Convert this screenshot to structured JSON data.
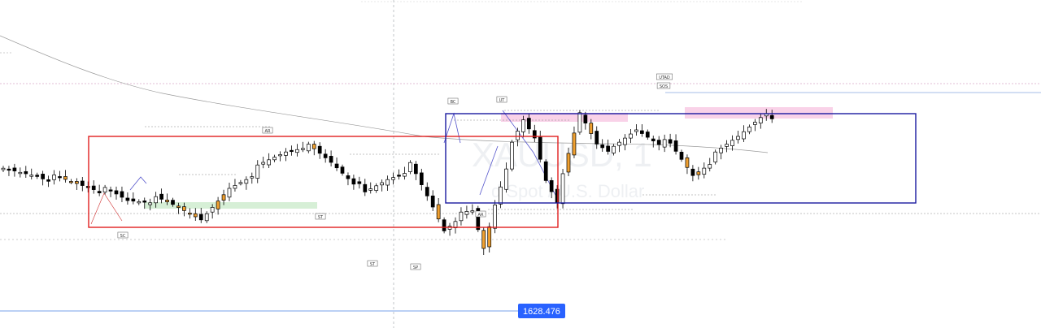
{
  "chart_data": {
    "type": "candlestick",
    "title": "",
    "watermark": {
      "ticker": "XAUUSD, 1",
      "name": "d Spot / U.S. Dollar"
    },
    "price_label": "1628.476",
    "labels": [
      {
        "text": "SC",
        "i": 23
      },
      {
        "text": "AR",
        "i": 53
      },
      {
        "text": "ST",
        "i": 64
      },
      {
        "text": "ST",
        "i": 76
      },
      {
        "text": "SP",
        "i": 85
      },
      {
        "text": "BC",
        "i": 92
      },
      {
        "text": "AR",
        "i": 97
      },
      {
        "text": "UT",
        "i": 102
      },
      {
        "text": "SOS",
        "i": 134
      },
      {
        "text": "UTAD",
        "i": 134
      }
    ],
    "colors": {
      "bull": "#ffffff",
      "bear": "#000000",
      "highlight": "#f0a030",
      "red_box": "#e02020",
      "blue_box": "#1a1aa0",
      "green_zone": "#cfeccf",
      "pink_zone": "#f8cde6",
      "price_tag": "#2962ff",
      "ma": "#9a9a9a"
    }
  }
}
